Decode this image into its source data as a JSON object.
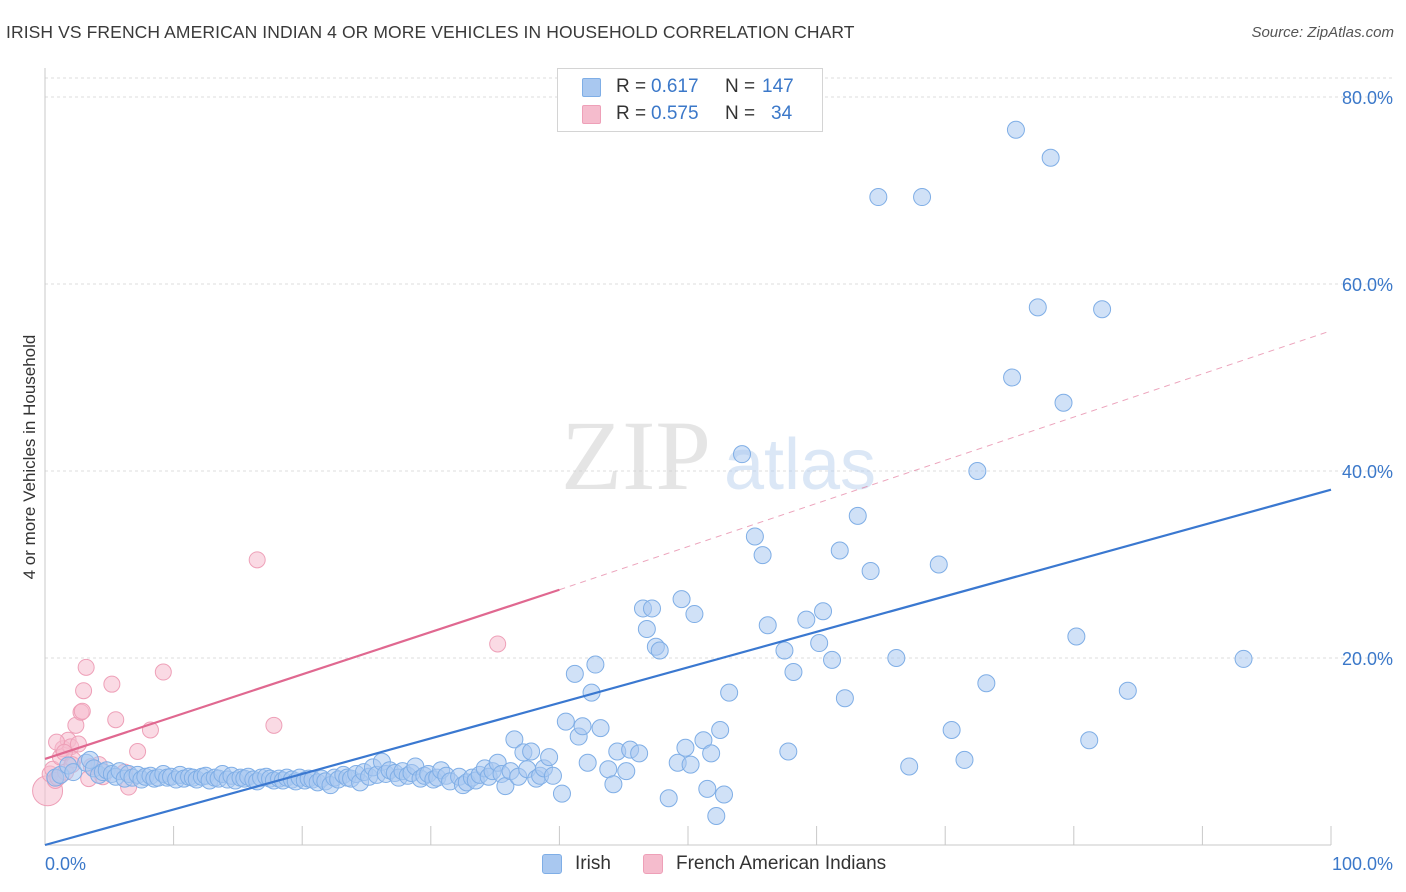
{
  "title": "IRISH VS FRENCH AMERICAN INDIAN 4 OR MORE VEHICLES IN HOUSEHOLD CORRELATION CHART",
  "source": "Source: ZipAtlas.com",
  "watermark": {
    "zip": "ZIP",
    "atlas": "atlas"
  },
  "colors": {
    "irish_fill": "#a9c8f0",
    "irish_stroke": "#7faee6",
    "irish_line": "#3a78d0",
    "french_fill": "#f5bccd",
    "french_stroke": "#eea0b8",
    "french_line": "#e06890",
    "axis_label": "#3b78c9",
    "grid": "#dcdcdc"
  },
  "stats_legend": {
    "rows": [
      {
        "r_label": "R =",
        "r_value": "0.617",
        "n_label": "N =",
        "n_value": "147"
      },
      {
        "r_label": "R =",
        "r_value": "0.575",
        "n_label": "N =",
        "n_value": "34"
      }
    ]
  },
  "bottom_legend": {
    "series1": "Irish",
    "series2": "French American Indians"
  },
  "chart_data": {
    "type": "scatter",
    "title": "IRISH VS FRENCH AMERICAN INDIAN 4 OR MORE VEHICLES IN HOUSEHOLD CORRELATION CHART",
    "xlabel": "",
    "ylabel": "4 or more Vehicles in Household",
    "xlim": [
      0,
      100
    ],
    "ylim": [
      0,
      80
    ],
    "x_tick_labels": [
      "0.0%",
      "100.0%"
    ],
    "y_ticks": [
      20,
      40,
      60,
      80
    ],
    "y_tick_labels": [
      "20.0%",
      "40.0%",
      "60.0%",
      "80.0%"
    ],
    "grid": true,
    "legend_position": "top-center",
    "series": [
      {
        "name": "Irish",
        "r": 0.617,
        "n": 147,
        "trend": {
          "x": [
            0,
            100
          ],
          "y": [
            0,
            38
          ]
        },
        "points": [
          [
            0.8,
            7.2
          ],
          [
            1.2,
            7.5
          ],
          [
            1.8,
            8.5
          ],
          [
            2.2,
            7.8
          ],
          [
            3.2,
            8.8
          ],
          [
            3.5,
            9.1
          ],
          [
            3.8,
            8.2
          ],
          [
            4.2,
            7.5
          ],
          [
            4.5,
            7.8
          ],
          [
            4.8,
            8.0
          ],
          [
            5.2,
            7.6
          ],
          [
            5.5,
            7.3
          ],
          [
            5.8,
            7.9
          ],
          [
            6.2,
            7.1
          ],
          [
            6.5,
            7.6
          ],
          [
            6.8,
            7.2
          ],
          [
            7.2,
            7.5
          ],
          [
            7.5,
            7.0
          ],
          [
            7.8,
            7.3
          ],
          [
            8.2,
            7.4
          ],
          [
            8.5,
            7.1
          ],
          [
            8.8,
            7.2
          ],
          [
            9.2,
            7.6
          ],
          [
            9.5,
            7.2
          ],
          [
            9.8,
            7.3
          ],
          [
            10.2,
            7.0
          ],
          [
            10.5,
            7.5
          ],
          [
            10.8,
            7.1
          ],
          [
            11.2,
            7.3
          ],
          [
            11.5,
            7.2
          ],
          [
            11.8,
            7.0
          ],
          [
            12.2,
            7.3
          ],
          [
            12.5,
            7.4
          ],
          [
            12.8,
            6.9
          ],
          [
            13.2,
            7.2
          ],
          [
            13.5,
            7.1
          ],
          [
            13.8,
            7.6
          ],
          [
            14.2,
            7.0
          ],
          [
            14.5,
            7.4
          ],
          [
            14.8,
            6.9
          ],
          [
            15.2,
            7.2
          ],
          [
            15.5,
            7.1
          ],
          [
            15.8,
            7.3
          ],
          [
            16.2,
            7.0
          ],
          [
            16.5,
            6.8
          ],
          [
            16.8,
            7.2
          ],
          [
            17.2,
            7.3
          ],
          [
            17.5,
            7.1
          ],
          [
            17.8,
            6.9
          ],
          [
            18.2,
            7.1
          ],
          [
            18.5,
            6.9
          ],
          [
            18.8,
            7.2
          ],
          [
            19.2,
            7.0
          ],
          [
            19.5,
            6.8
          ],
          [
            19.8,
            7.2
          ],
          [
            20.2,
            6.9
          ],
          [
            20.5,
            7.1
          ],
          [
            20.8,
            7.0
          ],
          [
            21.2,
            6.7
          ],
          [
            21.5,
            7.1
          ],
          [
            21.8,
            6.8
          ],
          [
            22.2,
            6.4
          ],
          [
            22.5,
            7.2
          ],
          [
            22.8,
            7.0
          ],
          [
            23.2,
            7.5
          ],
          [
            23.5,
            7.2
          ],
          [
            23.8,
            7.1
          ],
          [
            24.2,
            7.6
          ],
          [
            24.5,
            6.7
          ],
          [
            24.8,
            7.8
          ],
          [
            25.2,
            7.3
          ],
          [
            25.5,
            8.3
          ],
          [
            25.8,
            7.5
          ],
          [
            26.2,
            8.9
          ],
          [
            26.5,
            7.6
          ],
          [
            26.8,
            8.0
          ],
          [
            27.2,
            7.7
          ],
          [
            27.5,
            7.2
          ],
          [
            27.8,
            7.9
          ],
          [
            28.2,
            7.4
          ],
          [
            28.5,
            7.7
          ],
          [
            28.8,
            8.4
          ],
          [
            29.2,
            7.1
          ],
          [
            29.5,
            7.4
          ],
          [
            29.8,
            7.6
          ],
          [
            30.2,
            7.0
          ],
          [
            30.5,
            7.2
          ],
          [
            30.8,
            8.0
          ],
          [
            31.2,
            7.4
          ],
          [
            31.5,
            6.8
          ],
          [
            32.2,
            7.3
          ],
          [
            32.5,
            6.4
          ],
          [
            32.8,
            6.7
          ],
          [
            33.2,
            7.2
          ],
          [
            33.5,
            6.9
          ],
          [
            33.8,
            7.5
          ],
          [
            34.2,
            8.2
          ],
          [
            34.5,
            7.3
          ],
          [
            34.8,
            7.9
          ],
          [
            35.2,
            8.8
          ],
          [
            35.5,
            7.6
          ],
          [
            35.8,
            6.3
          ],
          [
            36.2,
            7.9
          ],
          [
            36.5,
            11.3
          ],
          [
            36.8,
            7.3
          ],
          [
            37.2,
            9.9
          ],
          [
            37.5,
            8.1
          ],
          [
            37.8,
            10.0
          ],
          [
            38.2,
            7.1
          ],
          [
            38.5,
            7.4
          ],
          [
            38.8,
            8.2
          ],
          [
            39.2,
            9.4
          ],
          [
            39.5,
            7.4
          ],
          [
            40.2,
            5.5
          ],
          [
            40.5,
            13.2
          ],
          [
            41.2,
            18.3
          ],
          [
            41.5,
            11.6
          ],
          [
            41.8,
            12.7
          ],
          [
            42.2,
            8.8
          ],
          [
            42.5,
            16.3
          ],
          [
            42.8,
            19.3
          ],
          [
            43.2,
            12.5
          ],
          [
            43.8,
            8.1
          ],
          [
            44.2,
            6.5
          ],
          [
            44.5,
            10.0
          ],
          [
            45.2,
            7.9
          ],
          [
            45.5,
            10.2
          ],
          [
            46.2,
            9.8
          ],
          [
            46.5,
            25.3
          ],
          [
            46.8,
            23.1
          ],
          [
            47.2,
            25.3
          ],
          [
            47.5,
            21.2
          ],
          [
            47.8,
            20.8
          ],
          [
            48.5,
            5.0
          ],
          [
            49.2,
            8.8
          ],
          [
            49.5,
            26.3
          ],
          [
            49.8,
            10.4
          ],
          [
            50.2,
            8.6
          ],
          [
            50.5,
            24.7
          ],
          [
            51.2,
            11.2
          ],
          [
            51.5,
            6.0
          ],
          [
            51.8,
            9.8
          ],
          [
            52.2,
            3.1
          ],
          [
            52.5,
            12.3
          ],
          [
            52.8,
            5.4
          ],
          [
            53.2,
            16.3
          ],
          [
            54.2,
            41.8
          ],
          [
            55.2,
            33.0
          ],
          [
            55.8,
            31.0
          ],
          [
            56.2,
            23.5
          ],
          [
            57.5,
            20.8
          ],
          [
            57.8,
            10.0
          ],
          [
            58.2,
            18.5
          ],
          [
            59.2,
            24.1
          ],
          [
            60.2,
            21.6
          ],
          [
            60.5,
            25.0
          ],
          [
            61.2,
            19.8
          ],
          [
            61.8,
            31.5
          ],
          [
            62.2,
            15.7
          ],
          [
            63.2,
            35.2
          ],
          [
            64.2,
            29.3
          ],
          [
            64.8,
            69.3
          ],
          [
            66.2,
            20.0
          ],
          [
            67.2,
            8.4
          ],
          [
            68.2,
            69.3
          ],
          [
            69.5,
            30.0
          ],
          [
            70.5,
            12.3
          ],
          [
            71.5,
            9.1
          ],
          [
            72.5,
            40.0
          ],
          [
            73.2,
            17.3
          ],
          [
            75.2,
            50.0
          ],
          [
            75.5,
            76.5
          ],
          [
            77.2,
            57.5
          ],
          [
            78.2,
            73.5
          ],
          [
            79.2,
            47.3
          ],
          [
            80.2,
            22.3
          ],
          [
            81.2,
            11.2
          ],
          [
            82.2,
            57.3
          ],
          [
            84.2,
            16.5
          ],
          [
            93.2,
            19.9
          ]
        ]
      },
      {
        "name": "French American Indians",
        "r": 0.575,
        "n": 34,
        "trend": {
          "x": [
            0,
            40
          ],
          "y": [
            9.2,
            27.3
          ]
        },
        "trend_extension": {
          "x": [
            40,
            100
          ],
          "y": [
            27.3,
            55.0
          ]
        },
        "points": [
          [
            0.2,
            5.8
          ],
          [
            0.4,
            7.6
          ],
          [
            0.6,
            8.1
          ],
          [
            0.8,
            6.9
          ],
          [
            1.0,
            7.2
          ],
          [
            1.2,
            9.4
          ],
          [
            1.4,
            10.3
          ],
          [
            1.6,
            7.8
          ],
          [
            1.8,
            11.2
          ],
          [
            2.0,
            10.5
          ],
          [
            2.2,
            9.1
          ],
          [
            2.4,
            12.8
          ],
          [
            2.6,
            10.8
          ],
          [
            2.8,
            14.2
          ],
          [
            3.0,
            16.5
          ],
          [
            3.2,
            19.0
          ],
          [
            3.4,
            7.1
          ],
          [
            3.6,
            8.4
          ],
          [
            4.2,
            8.6
          ],
          [
            4.5,
            7.3
          ],
          [
            5.2,
            17.2
          ],
          [
            5.5,
            13.4
          ],
          [
            6.2,
            7.8
          ],
          [
            6.5,
            6.2
          ],
          [
            7.2,
            10.0
          ],
          [
            8.2,
            12.3
          ],
          [
            9.2,
            18.5
          ],
          [
            16.5,
            30.5
          ],
          [
            17.8,
            12.8
          ],
          [
            35.2,
            21.5
          ],
          [
            0.9,
            11.0
          ],
          [
            1.5,
            9.9
          ],
          [
            2.1,
            8.6
          ],
          [
            2.9,
            14.3
          ]
        ]
      }
    ]
  }
}
